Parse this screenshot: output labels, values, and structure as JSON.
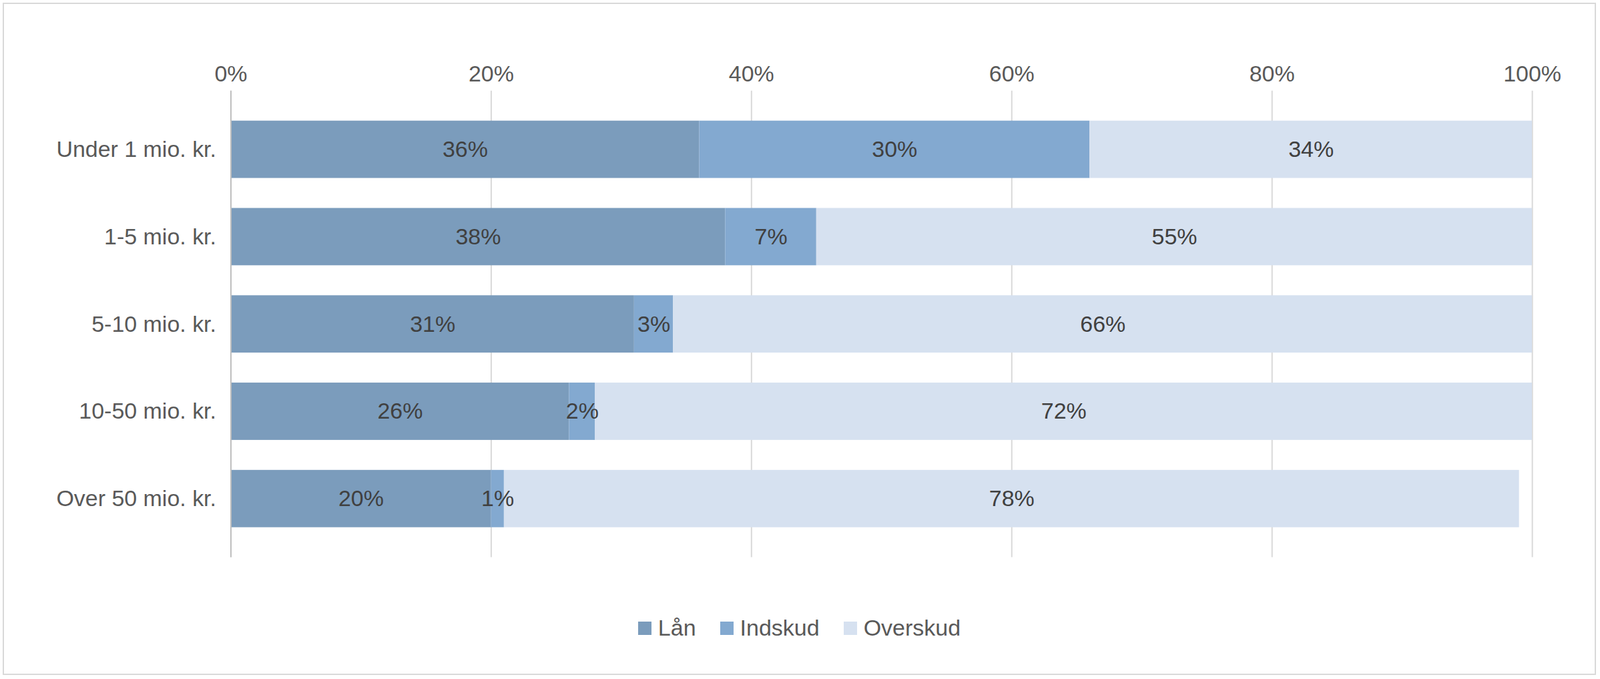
{
  "chart_data": {
    "type": "bar",
    "orientation": "horizontal",
    "stacked": true,
    "data_labels": true,
    "grid": true,
    "legend": "bottom",
    "categories": [
      "Under 1 mio. kr.",
      "1-5 mio. kr.",
      "5-10 mio. kr.",
      "10-50 mio. kr.",
      "Over 50 mio. kr."
    ],
    "xlim": [
      0,
      100
    ],
    "xticks": [
      {
        "value": 0,
        "label": "0%"
      },
      {
        "value": 20,
        "label": "20%"
      },
      {
        "value": 40,
        "label": "40%"
      },
      {
        "value": 60,
        "label": "60%"
      },
      {
        "value": 80,
        "label": "80%"
      },
      {
        "value": 100,
        "label": "100%"
      }
    ],
    "series": [
      {
        "name": "Lån",
        "color": "#7b9cbc",
        "values": [
          36,
          38,
          31,
          26,
          20
        ],
        "value_labels": [
          "36%",
          "38%",
          "31%",
          "26%",
          "20%"
        ]
      },
      {
        "name": "Indskud",
        "color": "#83a9d0",
        "values": [
          30,
          7,
          3,
          2,
          1
        ],
        "value_labels": [
          "30%",
          "7%",
          "3%",
          "2%",
          "1%"
        ]
      },
      {
        "name": "Overskud",
        "color": "#d6e1f0",
        "values": [
          34,
          55,
          66,
          72,
          78
        ],
        "value_labels": [
          "34%",
          "55%",
          "66%",
          "72%",
          "78%"
        ]
      }
    ]
  }
}
